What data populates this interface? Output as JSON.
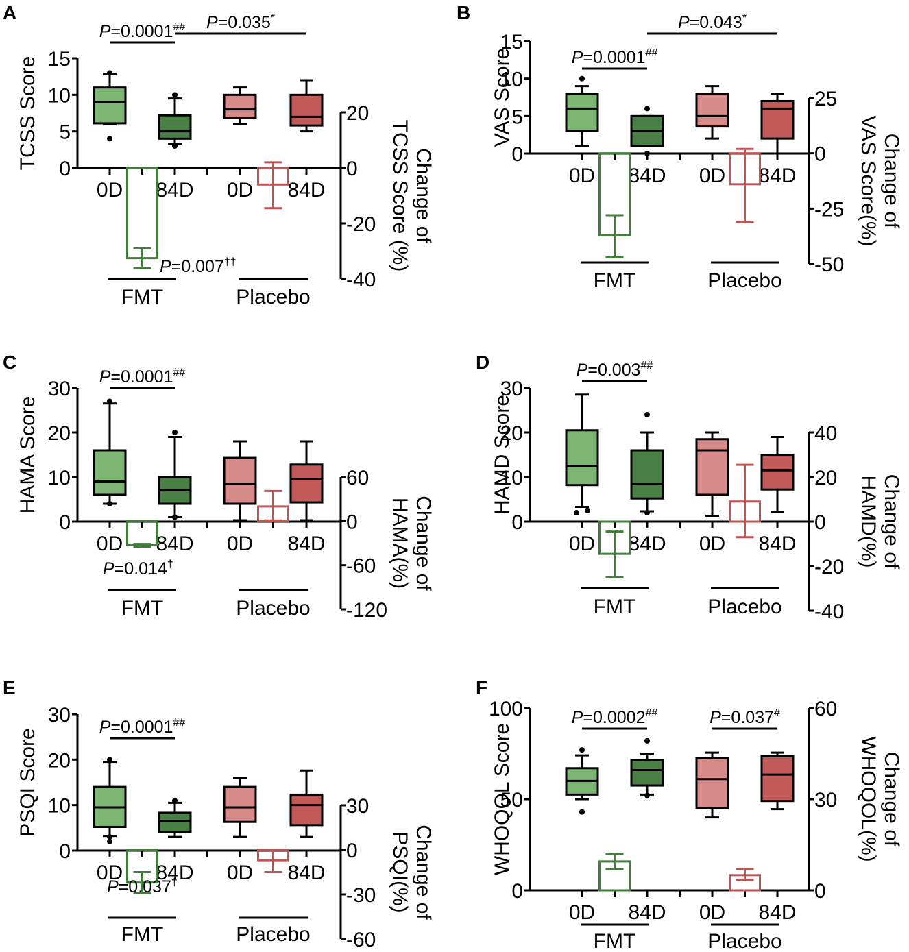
{
  "figure": {
    "colors": {
      "fmt_0d": "#7db573",
      "fmt_84d": "#4a7f45",
      "placebo_0d": "#d68a8a",
      "placebo_84d": "#c35a5a",
      "fmt_change": "#3f7f3a",
      "placebo_change": "#c25353",
      "axis": "#000000"
    },
    "x_categories": [
      "0D",
      "84D",
      "0D",
      "84D"
    ],
    "groups": [
      "FMT",
      "Placebo"
    ]
  },
  "chart_data": [
    {
      "panel": "A",
      "type": "box+bar",
      "ylabel": "TCSS Score",
      "ylabel2": [
        "Change of",
        "TCSS Score (%)"
      ],
      "ylim": [
        0,
        15
      ],
      "yticks": [
        0,
        5,
        10,
        15
      ],
      "ylim2": [
        -40,
        20
      ],
      "yticks2": [
        -40,
        -20,
        0,
        20
      ],
      "categories": [
        "0D",
        "84D",
        "0D",
        "84D"
      ],
      "groups": [
        "FMT",
        "Placebo"
      ],
      "boxes": [
        {
          "group": "FMT",
          "time": "0D",
          "min": 6,
          "q1": 6.1,
          "median": 9,
          "q3": 11,
          "max": 12.8,
          "outliers": [
            13,
            4
          ]
        },
        {
          "group": "FMT",
          "time": "84D",
          "min": 3.3,
          "q1": 4,
          "median": 5,
          "q3": 7.2,
          "max": 9.5,
          "outliers": [
            10,
            3
          ]
        },
        {
          "group": "Placebo",
          "time": "0D",
          "min": 6,
          "q1": 6.8,
          "median": 8,
          "q3": 10,
          "max": 11,
          "outliers": []
        },
        {
          "group": "Placebo",
          "time": "84D",
          "min": 5,
          "q1": 5.8,
          "median": 7,
          "q3": 10,
          "max": 12,
          "outliers": []
        }
      ],
      "change_bars": [
        {
          "group": "FMT",
          "mean": -32.5,
          "err_low": -36,
          "err_high": -29
        },
        {
          "group": "Placebo",
          "mean": -6,
          "err_low": -14.5,
          "err_high": 2
        }
      ],
      "annotations": [
        {
          "text": "P",
          "value": "=0.0001",
          "sup": "##",
          "from": 0,
          "to": 1,
          "level": "inner"
        },
        {
          "text": "P",
          "value": "=0.035",
          "sup": "*",
          "from": 1,
          "to": 3,
          "level": "outer"
        },
        {
          "text": "P",
          "value": "=0.007",
          "sup": "††",
          "position": "below-fmt-change"
        }
      ]
    },
    {
      "panel": "B",
      "type": "box+bar",
      "ylabel": "VAS Score",
      "ylabel2": [
        "Change of",
        "VAS Score(%)"
      ],
      "ylim": [
        0,
        15
      ],
      "yticks": [
        0,
        5,
        10,
        15
      ],
      "ylim2": [
        -50,
        25
      ],
      "yticks2": [
        -50,
        -25,
        0,
        25
      ],
      "categories": [
        "0D",
        "84D",
        "0D",
        "84D"
      ],
      "groups": [
        "FMT",
        "Placebo"
      ],
      "boxes": [
        {
          "group": "FMT",
          "time": "0D",
          "min": 1,
          "q1": 3,
          "median": 6,
          "q3": 8,
          "max": 9,
          "outliers": [
            10
          ]
        },
        {
          "group": "FMT",
          "time": "84D",
          "min": 1,
          "q1": 1,
          "median": 3,
          "q3": 5,
          "max": 5,
          "outliers": [
            6,
            0
          ]
        },
        {
          "group": "Placebo",
          "time": "0D",
          "min": 2,
          "q1": 3.6,
          "median": 5,
          "q3": 8,
          "max": 9,
          "outliers": []
        },
        {
          "group": "Placebo",
          "time": "84D",
          "min": 0,
          "q1": 2,
          "median": 6,
          "q3": 7,
          "max": 8,
          "outliers": []
        }
      ],
      "change_bars": [
        {
          "group": "FMT",
          "mean": -37,
          "err_low": -47,
          "err_high": -28
        },
        {
          "group": "Placebo",
          "mean": -14,
          "err_low": -31,
          "err_high": 2
        }
      ],
      "annotations": [
        {
          "text": "P",
          "value": "=0.0001",
          "sup": "##",
          "from": 0,
          "to": 1,
          "level": "inner"
        },
        {
          "text": "P",
          "value": "=0.043",
          "sup": "*",
          "from": 1,
          "to": 3,
          "level": "outer"
        }
      ]
    },
    {
      "panel": "C",
      "type": "box+bar",
      "ylabel": "HAMA Score",
      "ylabel2": [
        "Change of",
        "HAMA(%)"
      ],
      "ylim": [
        0,
        30
      ],
      "yticks": [
        0,
        10,
        20,
        30
      ],
      "ylim2": [
        -120,
        60
      ],
      "yticks2": [
        -120,
        -60,
        0,
        60
      ],
      "categories": [
        "0D",
        "84D",
        "0D",
        "84D"
      ],
      "groups": [
        "FMT",
        "Placebo"
      ],
      "boxes": [
        {
          "group": "FMT",
          "time": "0D",
          "min": 4,
          "q1": 6,
          "median": 9,
          "q3": 16,
          "max": 26.5,
          "outliers": [
            27,
            4
          ]
        },
        {
          "group": "FMT",
          "time": "84D",
          "min": 1,
          "q1": 4,
          "median": 7,
          "q3": 10,
          "max": 19,
          "outliers": [
            20,
            1
          ]
        },
        {
          "group": "Placebo",
          "time": "0D",
          "min": 0.3,
          "q1": 4,
          "median": 8.5,
          "q3": 14.3,
          "max": 18,
          "outliers": []
        },
        {
          "group": "Placebo",
          "time": "84D",
          "min": 0.3,
          "q1": 4.3,
          "median": 9.6,
          "q3": 12.8,
          "max": 18,
          "outliers": []
        }
      ],
      "change_bars": [
        {
          "group": "FMT",
          "mean": -32,
          "err_low": -35,
          "err_high": -31
        },
        {
          "group": "Placebo",
          "mean": 20,
          "err_low": 1,
          "err_high": 41
        }
      ],
      "annotations": [
        {
          "text": "P",
          "value": "=0.0001",
          "sup": "##",
          "from": 0,
          "to": 1,
          "level": "inner"
        },
        {
          "text": "P",
          "value": "=0.014",
          "sup": "†",
          "position": "below-fmt-change"
        }
      ]
    },
    {
      "panel": "D",
      "type": "box+bar",
      "ylabel": "HAMD Score",
      "ylabel2": [
        "Change of",
        "HAMD(%)"
      ],
      "ylim": [
        0,
        30
      ],
      "yticks": [
        0,
        10,
        20,
        30
      ],
      "ylim2": [
        -40,
        40
      ],
      "yticks2": [
        -40,
        -20,
        0,
        20,
        40
      ],
      "categories": [
        "0D",
        "84D",
        "0D",
        "84D"
      ],
      "groups": [
        "FMT",
        "Placebo"
      ],
      "boxes": [
        {
          "group": "FMT",
          "time": "0D",
          "min": 3.3,
          "q1": 8.2,
          "median": 12.5,
          "q3": 20.5,
          "max": 28.5,
          "outliers": [
            2,
            2.5
          ]
        },
        {
          "group": "FMT",
          "time": "84D",
          "min": 2.3,
          "q1": 5.2,
          "median": 8.5,
          "q3": 16,
          "max": 20,
          "outliers": [
            24,
            2
          ]
        },
        {
          "group": "Placebo",
          "time": "0D",
          "min": 1.3,
          "q1": 6,
          "median": 16,
          "q3": 18.5,
          "max": 20,
          "outliers": []
        },
        {
          "group": "Placebo",
          "time": "84D",
          "min": 2.2,
          "q1": 7.2,
          "median": 11.5,
          "q3": 15,
          "max": 19,
          "outliers": []
        }
      ],
      "change_bars": [
        {
          "group": "FMT",
          "mean": -14.5,
          "err_low": -25,
          "err_high": -4.5
        },
        {
          "group": "Placebo",
          "mean": 9,
          "err_low": -7,
          "err_high": 25.5
        }
      ],
      "annotations": [
        {
          "text": "P",
          "value": "=0.003",
          "sup": "##",
          "from": 0,
          "to": 1,
          "level": "inner"
        }
      ]
    },
    {
      "panel": "E",
      "type": "box+bar",
      "ylabel": "PSQI Score",
      "ylabel2": [
        "Change of",
        "PSQI(%)"
      ],
      "ylim": [
        0,
        30
      ],
      "yticks": [
        0,
        10,
        20,
        30
      ],
      "ylim2": [
        -60,
        30
      ],
      "yticks2": [
        -60,
        -30,
        0,
        30
      ],
      "categories": [
        "0D",
        "84D",
        "0D",
        "84D"
      ],
      "groups": [
        "FMT",
        "Placebo"
      ],
      "boxes": [
        {
          "group": "FMT",
          "time": "0D",
          "min": 3.2,
          "q1": 5.2,
          "median": 9.5,
          "q3": 14,
          "max": 19.5,
          "outliers": [
            20,
            2,
            3
          ]
        },
        {
          "group": "FMT",
          "time": "84D",
          "min": 3,
          "q1": 4,
          "median": 6.5,
          "q3": 8.3,
          "max": 10.5,
          "outliers": [
            11
          ]
        },
        {
          "group": "Placebo",
          "time": "0D",
          "min": 3,
          "q1": 6.3,
          "median": 9.5,
          "q3": 14,
          "max": 16,
          "outliers": []
        },
        {
          "group": "Placebo",
          "time": "84D",
          "min": 3,
          "q1": 5.6,
          "median": 10,
          "q3": 12.3,
          "max": 17.6,
          "outliers": []
        }
      ],
      "change_bars": [
        {
          "group": "FMT",
          "mean": -22,
          "err_low": -29,
          "err_high": -15
        },
        {
          "group": "Placebo",
          "mean": -7,
          "err_low": -15,
          "err_high": 0
        }
      ],
      "annotations": [
        {
          "text": "P",
          "value": "=0.0001",
          "sup": "##",
          "from": 0,
          "to": 1,
          "level": "inner"
        },
        {
          "text": "P",
          "value": "=0.037",
          "sup": "†",
          "position": "below-fmt-change"
        }
      ]
    },
    {
      "panel": "F",
      "type": "box+bar",
      "ylabel": "WHOQOL Score",
      "ylabel2": [
        "Change of",
        "WHOQOL(%)"
      ],
      "ylim": [
        0,
        100
      ],
      "yticks": [
        0,
        50,
        100
      ],
      "ylim2": [
        0,
        60
      ],
      "yticks2": [
        0,
        30,
        60
      ],
      "categories": [
        "0D",
        "84D",
        "0D",
        "84D"
      ],
      "groups": [
        "FMT",
        "Placebo"
      ],
      "boxes": [
        {
          "group": "FMT",
          "time": "0D",
          "min": 50,
          "q1": 52.5,
          "median": 60,
          "q3": 67,
          "max": 74,
          "outliers": [
            77,
            43
          ]
        },
        {
          "group": "FMT",
          "time": "84D",
          "min": 52.5,
          "q1": 57.5,
          "median": 66,
          "q3": 71.5,
          "max": 75,
          "outliers": [
            82,
            52
          ]
        },
        {
          "group": "Placebo",
          "time": "0D",
          "min": 40,
          "q1": 45,
          "median": 61,
          "q3": 72.5,
          "max": 75.5,
          "outliers": []
        },
        {
          "group": "Placebo",
          "time": "84D",
          "min": 44.5,
          "q1": 49,
          "median": 63.5,
          "q3": 73.5,
          "max": 75.5,
          "outliers": []
        }
      ],
      "change_bars": [
        {
          "group": "FMT",
          "mean": 9.5,
          "err_low": 7,
          "err_high": 12
        },
        {
          "group": "Placebo",
          "mean": 5,
          "err_low": 3.5,
          "err_high": 7
        }
      ],
      "annotations": [
        {
          "text": "P",
          "value": "=0.0002",
          "sup": "##",
          "from": 0,
          "to": 1,
          "level": "inner"
        },
        {
          "text": "P",
          "value": "=0.037",
          "sup": "#",
          "from": 2,
          "to": 3,
          "level": "inner"
        }
      ]
    }
  ]
}
